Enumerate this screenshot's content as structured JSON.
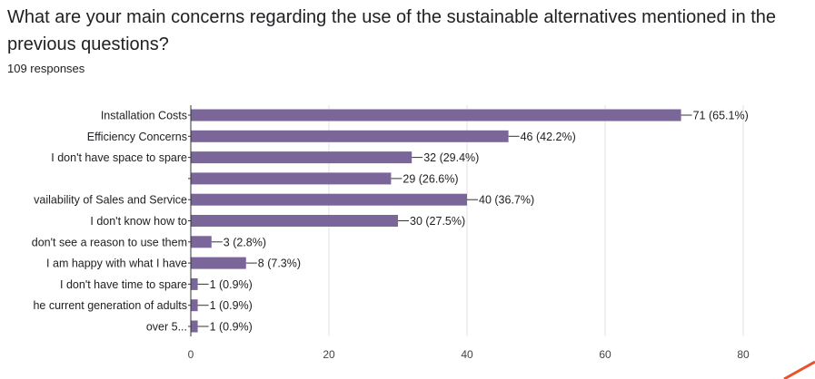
{
  "question": {
    "title": "What are your main concerns regarding the use of the sustainable alternatives mentioned in the previous questions?",
    "responses": "109 responses"
  },
  "colors": {
    "bar": "#7b6699",
    "axis": "#333333",
    "grid": "#e0e0e0",
    "text": "#202124",
    "accent_mark": "#e8522f"
  },
  "chart_data": {
    "type": "bar",
    "orientation": "horizontal",
    "categories": [
      "Installation Costs",
      "Efficiency Concerns",
      "I don't have space to spare",
      "",
      "vailability of Sales and Service",
      "I don't know how to",
      "don't see a reason to use them",
      "I am happy with what I have",
      "I don't have time to spare",
      "he current generation of adults",
      "over 5..."
    ],
    "values": [
      71,
      46,
      32,
      29,
      40,
      30,
      3,
      8,
      1,
      1,
      1
    ],
    "data_labels": [
      "71 (65.1%)",
      "46 (42.2%)",
      "32 (29.4%)",
      "29 (26.6%)",
      "40 (36.7%)",
      "30 (27.5%)",
      "3 (2.8%)",
      "8 (7.3%)",
      "1 (0.9%)",
      "1 (0.9%)",
      "1 (0.9%)"
    ],
    "xlim": [
      0,
      80
    ],
    "x_ticks": [
      "0",
      "20",
      "40",
      "60",
      "80"
    ],
    "grid": true,
    "legend": false
  }
}
